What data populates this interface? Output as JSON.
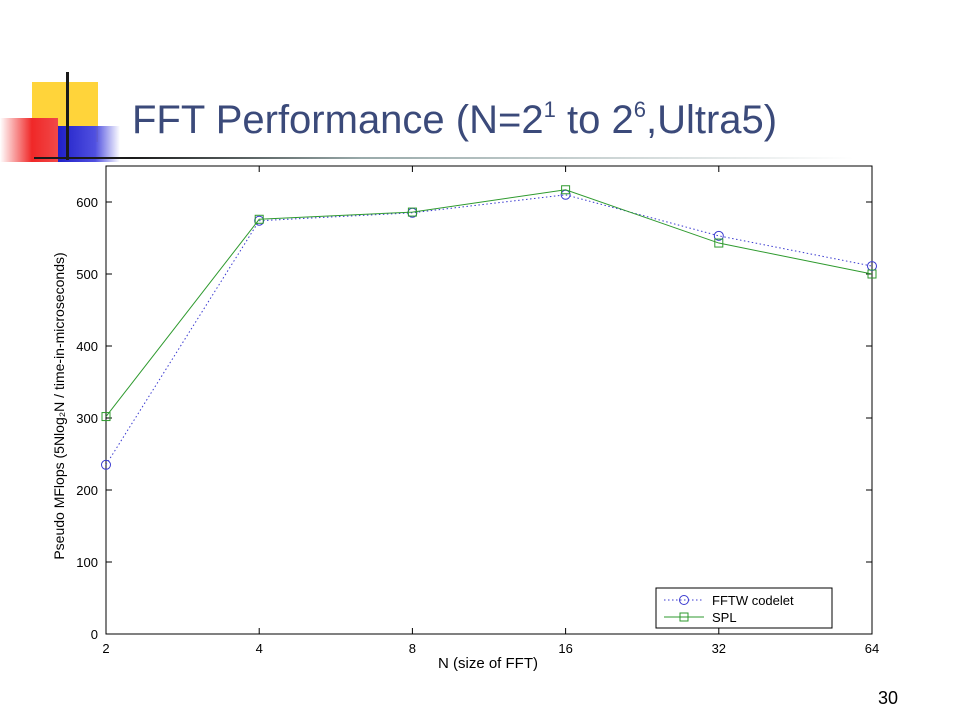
{
  "slide": {
    "title_main": "FFT Performance (N=2",
    "title_exp1": "1",
    "title_mid": " to 2",
    "title_exp2": "6",
    "title_tail": ",Ultra5)",
    "page_number": "30"
  },
  "chart_data": {
    "type": "line",
    "title": "",
    "xlabel": "N (size of FFT)",
    "ylabel": "Pseudo MFlops (5Nlog₂N / time-in-microseconds)",
    "categories": [
      "2",
      "4",
      "8",
      "16",
      "32",
      "64"
    ],
    "ylim": [
      0,
      650
    ],
    "yticks": [
      0,
      100,
      200,
      300,
      400,
      500,
      600
    ],
    "grid": false,
    "legend_position": "bottom-right",
    "series": [
      {
        "name": "FFTW codelet",
        "values": [
          235,
          574,
          585,
          610,
          553,
          511
        ],
        "color": "#3a3ad0",
        "dash": "dotted",
        "marker": "circle"
      },
      {
        "name": "SPL",
        "values": [
          302,
          576,
          586,
          617,
          543,
          500
        ],
        "color": "#2e9a2e",
        "dash": "solid",
        "marker": "square"
      }
    ]
  }
}
